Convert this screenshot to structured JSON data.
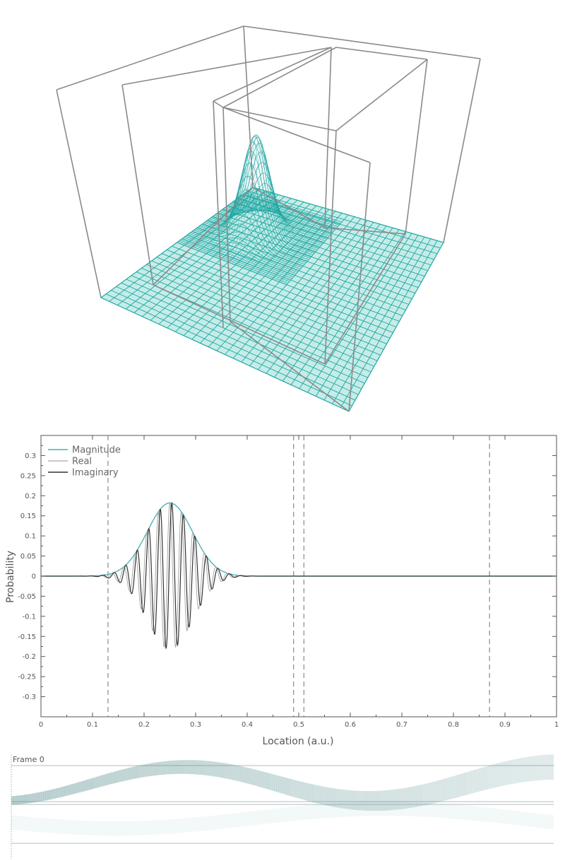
{
  "colors": {
    "magnitude": "#3fb1b3",
    "real": "#a8a8a8",
    "imaginary": "#333333",
    "grid": "#1fa7a3",
    "grid_fill": "#c6ece8",
    "box": "#8a8a8a",
    "dashed": "#888888",
    "axis": "#555555"
  },
  "surface_view": {
    "legend": "wavepacket probability surface over square well with barrier walls",
    "grid_cells": 30
  },
  "frame_label": "Frame 0",
  "chart_data": {
    "type": "line",
    "title": "",
    "xlabel": "Location (a.u.)",
    "ylabel": "Probability",
    "xlim": [
      0,
      1
    ],
    "ylim": [
      -0.35,
      0.35
    ],
    "x_ticks": [
      "0",
      "0.1",
      "0.2",
      "0.3",
      "0.4",
      "0.5",
      "0.6",
      "0.7",
      "0.8",
      "0.9",
      "1"
    ],
    "y_ticks": [
      "0.3",
      "0.25",
      "0.2",
      "0.15",
      "0.1",
      "0.05",
      "0",
      "-0.05",
      "-0.1",
      "-0.15",
      "-0.2",
      "-0.25",
      "-0.3"
    ],
    "legend_position": "top-left",
    "series": [
      {
        "name": "Magnitude",
        "center": 0.25,
        "sigma": 0.044,
        "amplitude": 0.182
      },
      {
        "name": "Real",
        "center": 0.25,
        "sigma": 0.044,
        "amplitude": 0.182,
        "wavelength": 0.0224,
        "phase": "cos"
      },
      {
        "name": "Imaginary",
        "center": 0.25,
        "sigma": 0.044,
        "amplitude": 0.182,
        "wavelength": 0.0224,
        "phase": "sin"
      }
    ],
    "vertical_markers": [
      0.13,
      0.49,
      0.51,
      0.87
    ],
    "grid": false
  }
}
